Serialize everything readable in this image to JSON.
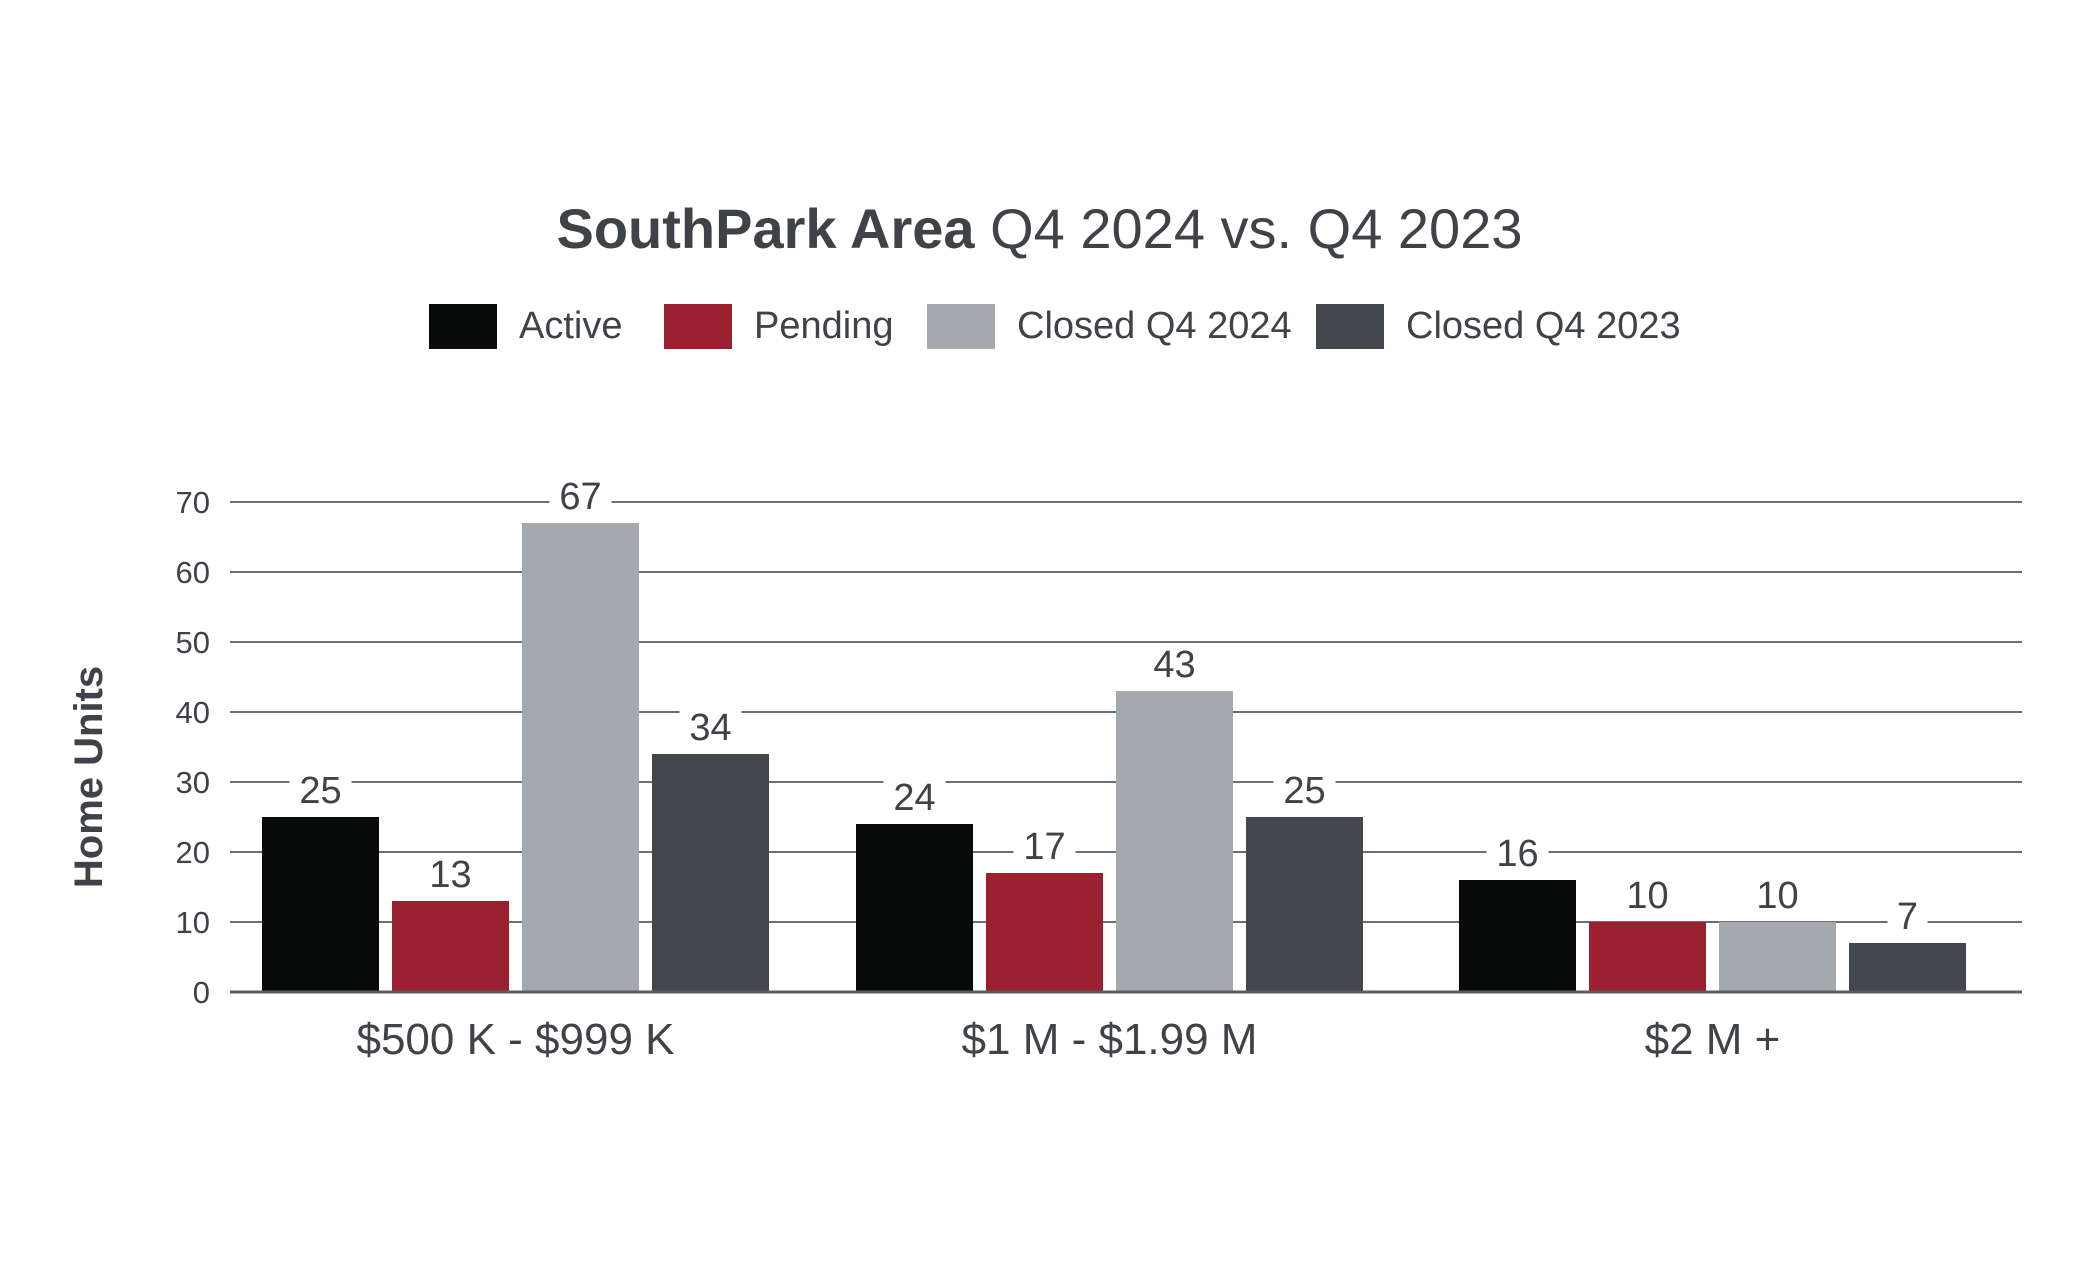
{
  "chart_data": {
    "type": "bar",
    "title_bold": "SouthPark Area",
    "title_rest": "Q4 2024 vs. Q4 2023",
    "ylabel": "Home Units",
    "xlabel": "",
    "ylim": [
      0,
      70
    ],
    "yticks": [
      0,
      10,
      20,
      30,
      40,
      50,
      60,
      70
    ],
    "grid": true,
    "legend_position": "top-center",
    "categories": [
      "$500 K - $999 K",
      "$1 M - $1.99 M",
      "$2 M +"
    ],
    "series": [
      {
        "name": "Active",
        "color": "#080a0a",
        "values": [
          25,
          24,
          16
        ]
      },
      {
        "name": "Pending",
        "color": "#9b2030",
        "values": [
          13,
          17,
          10
        ]
      },
      {
        "name": "Closed Q4 2024",
        "color": "#a3a9ac",
        "values": [
          67,
          43,
          10
        ]
      },
      {
        "name": "Closed Q4 2023",
        "color": "#43474b",
        "values": [
          34,
          25,
          7
        ]
      }
    ],
    "data_labels": [
      [
        "25",
        "13",
        "67",
        "34"
      ],
      [
        "24",
        "17",
        "43",
        "25"
      ],
      [
        "16",
        "10",
        "10",
        "7"
      ]
    ]
  }
}
